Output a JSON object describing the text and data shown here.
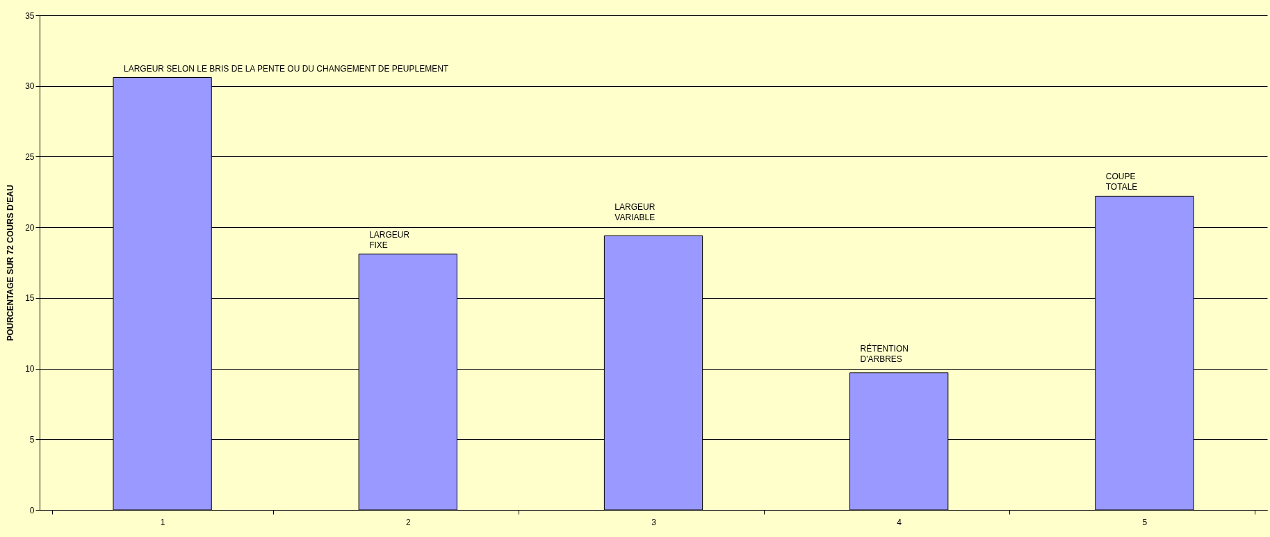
{
  "chart_data": {
    "type": "bar",
    "ylabel": "POURCENTAGE SUR 72 COURS D'EAU",
    "categories": [
      "1",
      "2",
      "3",
      "4",
      "5"
    ],
    "values": [
      30.6,
      18.1,
      19.4,
      9.7,
      22.2
    ],
    "color": "#9999ff",
    "ylim": [
      0,
      35
    ],
    "yticks": [
      0,
      5,
      10,
      15,
      20,
      25,
      30,
      35
    ],
    "grid": "y",
    "annotations": [
      {
        "text": "LARGEUR SELON LE BRIS DE LA PENTE OU DU CHANGEMENT DE PEUPLEMENT",
        "x": "1",
        "y": 30.6
      },
      {
        "text": "LARGEUR\nFIXE",
        "x": "2",
        "y": 18.1
      },
      {
        "text": "LARGEUR\nVARIABLE",
        "x": "3",
        "y": 19.4
      },
      {
        "text": "RÉTENTION\nD'ARBRES",
        "x": "4",
        "y": 9.7
      },
      {
        "text": "COUPE\nTOTALE",
        "x": "5",
        "y": 22.2
      }
    ]
  }
}
